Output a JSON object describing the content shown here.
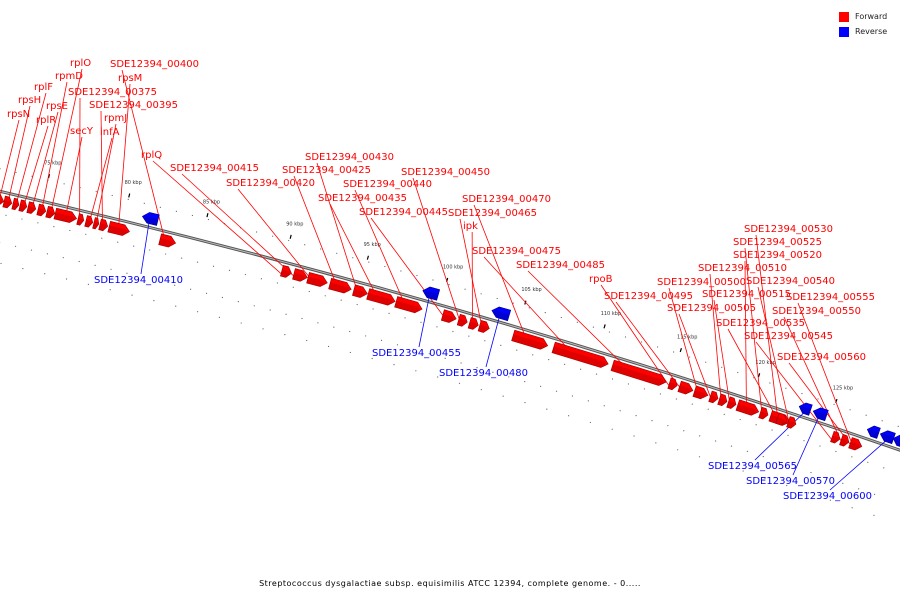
{
  "legend": {
    "forward_label": "Forward",
    "reverse_label": "Reverse",
    "forward_color": "#ff0000",
    "reverse_color": "#0000ff"
  },
  "caption": "Streptococcus dysgalactiae subsp. equisimilis ATCC 12394, complete genome. - 0.....",
  "ticks": [
    "75 kbp",
    "80 kbp",
    "85 kbp",
    "90 kbp",
    "95 kbp",
    "100 kbp",
    "105 kbp",
    "110 kbp",
    "115 kbp",
    "120 kbp",
    "125 kbp"
  ],
  "genes": {
    "forward": [
      "rpsN",
      "rpsH",
      "rplF",
      "rplR",
      "rpsE",
      "rpmD",
      "rplO",
      "secY",
      "SDE12394_00375",
      "infA",
      "rpmJ",
      "SDE12394_00395",
      "rpsM",
      "SDE12394_00400",
      "rplQ",
      "SDE12394_00415",
      "SDE12394_00420",
      "SDE12394_00425",
      "SDE12394_00430",
      "SDE12394_00435",
      "SDE12394_00440",
      "SDE12394_00445",
      "SDE12394_00450",
      "ipk",
      "SDE12394_00465",
      "SDE12394_00470",
      "SDE12394_00475",
      "SDE12394_00485",
      "rpoB",
      "SDE12394_00495",
      "SDE12394_00500",
      "SDE12394_00505",
      "SDE12394_00510",
      "SDE12394_00515",
      "SDE12394_00520",
      "SDE12394_00525",
      "SDE12394_00530",
      "SDE12394_00535",
      "SDE12394_00540",
      "SDE12394_00545",
      "SDE12394_00550",
      "SDE12394_00555",
      "SDE12394_00560"
    ],
    "reverse": [
      "SDE12394_00410",
      "SDE12394_00455",
      "SDE12394_00480",
      "SDE12394_00565",
      "SDE12394_00570",
      "SDE12394_00600"
    ]
  }
}
